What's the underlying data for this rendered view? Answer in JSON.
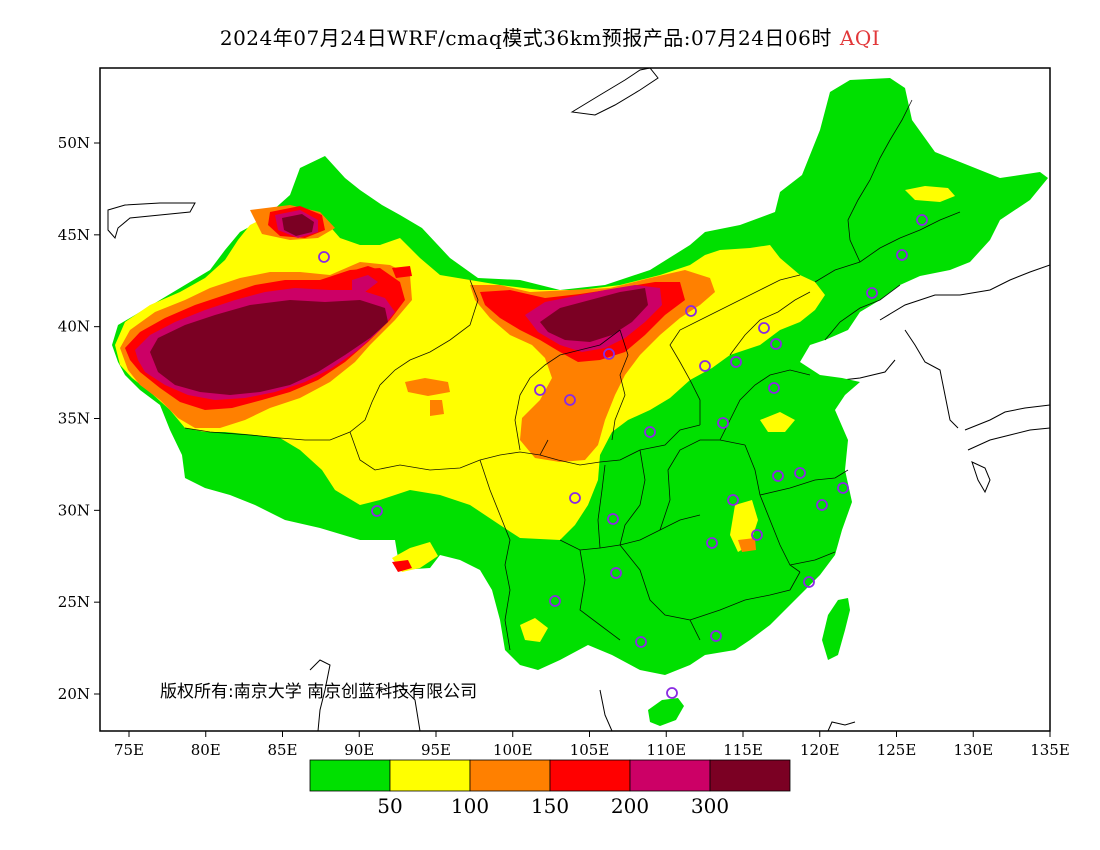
{
  "title": {
    "main": "2024年07月24日WRF/cmaq模式36km预报产品:07月24日06时",
    "variable": "AQI"
  },
  "map": {
    "lon_range": [
      73,
      135
    ],
    "lat_range": [
      18,
      54
    ],
    "lon_ticks": [
      {
        "value": 75,
        "label": "75E"
      },
      {
        "value": 80,
        "label": "80E"
      },
      {
        "value": 85,
        "label": "85E"
      },
      {
        "value": 90,
        "label": "90E"
      },
      {
        "value": 95,
        "label": "95E"
      },
      {
        "value": 100,
        "label": "100E"
      },
      {
        "value": 105,
        "label": "105E"
      },
      {
        "value": 110,
        "label": "110E"
      },
      {
        "value": 115,
        "label": "115E"
      },
      {
        "value": 120,
        "label": "120E"
      },
      {
        "value": 125,
        "label": "125E"
      },
      {
        "value": 130,
        "label": "130E"
      },
      {
        "value": 135,
        "label": "135E"
      }
    ],
    "lat_ticks": [
      {
        "value": 20,
        "label": "20N"
      },
      {
        "value": 25,
        "label": "25N"
      },
      {
        "value": 30,
        "label": "30N"
      },
      {
        "value": 35,
        "label": "35N"
      },
      {
        "value": 40,
        "label": "40N"
      },
      {
        "value": 45,
        "label": "45N"
      },
      {
        "value": 50,
        "label": "50N"
      }
    ],
    "copyright": "版权所有:南京大学 南京创蓝科技有限公司",
    "colors": {
      "aqi_0_50": "#00e000",
      "aqi_50_100": "#ffff00",
      "aqi_100_150": "#ff8000",
      "aqi_150_200": "#ff0000",
      "aqi_200_300": "#cc0066",
      "aqi_300_plus": "#7b0023",
      "station_marker": "#8a2be2"
    }
  },
  "colorbar": {
    "colors": [
      "#00e000",
      "#ffff00",
      "#ff8000",
      "#ff0000",
      "#cc0066",
      "#7b0023"
    ],
    "labels": [
      "50",
      "100",
      "150",
      "200",
      "300"
    ]
  }
}
